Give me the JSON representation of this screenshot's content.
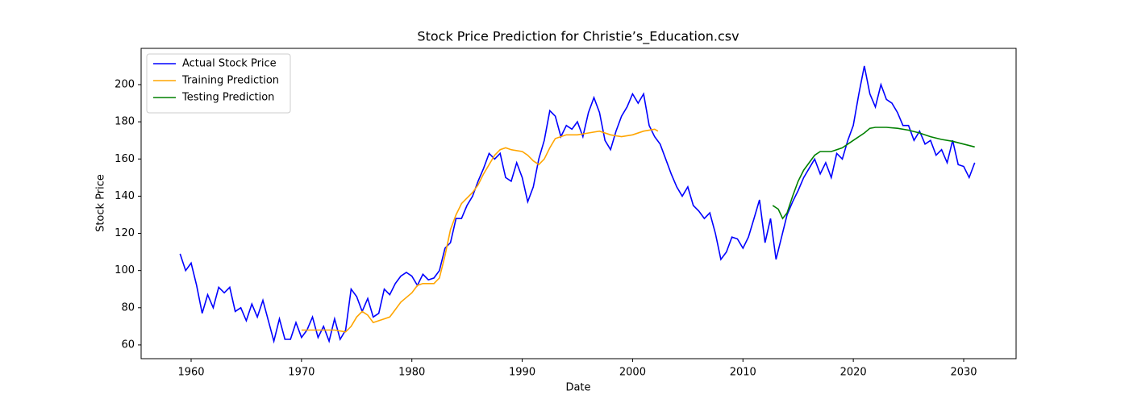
{
  "chart_data": {
    "type": "line",
    "title": "Stock Price Prediction for Christie’s_Education.csv",
    "x_label": "Date",
    "y_label": "Stock Price",
    "xlim": [
      1955.47,
      2034.75
    ],
    "ylim": [
      52.6,
      219.5
    ],
    "xticks": [
      1960,
      1970,
      1980,
      1990,
      2000,
      2010,
      2020,
      2030
    ],
    "yticks": [
      60,
      80,
      100,
      120,
      140,
      160,
      180,
      200
    ],
    "grid": false,
    "legend": "upper left",
    "series": [
      {
        "name": "Actual Stock Price",
        "color": "#0000ff",
        "x": [
          1959.0,
          1959.5,
          1960.0,
          1960.5,
          1961.0,
          1961.5,
          1962.0,
          1962.5,
          1963.0,
          1963.5,
          1964.0,
          1964.5,
          1965.0,
          1965.5,
          1966.0,
          1966.5,
          1967.0,
          1967.5,
          1968.0,
          1968.5,
          1969.0,
          1969.5,
          1970.0,
          1970.5,
          1971.0,
          1971.5,
          1972.0,
          1972.5,
          1973.0,
          1973.5,
          1974.0,
          1974.5,
          1975.0,
          1975.5,
          1976.0,
          1976.5,
          1977.0,
          1977.5,
          1978.0,
          1978.5,
          1979.0,
          1979.5,
          1980.0,
          1980.5,
          1981.0,
          1981.5,
          1982.0,
          1982.5,
          1983.0,
          1983.5,
          1984.0,
          1984.5,
          1985.0,
          1985.5,
          1986.0,
          1986.5,
          1987.0,
          1987.5,
          1988.0,
          1988.5,
          1989.0,
          1989.5,
          1990.0,
          1990.5,
          1991.0,
          1991.5,
          1992.0,
          1992.5,
          1993.0,
          1993.5,
          1994.0,
          1994.5,
          1995.0,
          1995.5,
          1996.0,
          1996.5,
          1997.0,
          1997.5,
          1998.0,
          1998.5,
          1999.0,
          1999.5,
          2000.0,
          2000.5,
          2001.0,
          2001.5,
          2002.0,
          2002.5,
          2003.0,
          2003.5,
          2004.0,
          2004.5,
          2005.0,
          2005.5,
          2006.0,
          2006.5,
          2007.0,
          2007.5,
          2008.0,
          2008.5,
          2009.0,
          2009.5,
          2010.0,
          2010.5,
          2011.0,
          2011.5,
          2012.0,
          2012.5,
          2013.0,
          2013.5,
          2014.0,
          2014.5,
          2015.0,
          2015.5,
          2016.0,
          2016.5,
          2017.0,
          2017.5,
          2018.0,
          2018.5,
          2019.0,
          2019.5,
          2020.0,
          2020.5,
          2021.0,
          2021.5,
          2022.0,
          2022.5,
          2023.0,
          2023.5,
          2024.0,
          2024.5,
          2025.0,
          2025.5,
          2026.0,
          2026.5,
          2027.0,
          2027.5,
          2028.0,
          2028.5,
          2029.0,
          2029.5,
          2030.0,
          2030.5,
          2031.0
        ],
        "values": [
          109,
          100,
          104,
          92,
          77,
          87,
          80,
          91,
          88,
          91,
          78,
          80,
          73,
          82,
          75,
          84,
          73,
          62,
          74,
          63,
          63,
          72,
          64,
          68,
          75,
          64,
          70,
          62,
          74,
          63,
          68,
          90,
          86,
          78,
          85,
          75,
          77,
          90,
          87,
          93,
          97,
          99,
          97,
          92,
          98,
          95,
          96,
          100,
          112,
          115,
          128,
          128,
          135,
          140,
          148,
          155,
          163,
          160,
          163,
          150,
          148,
          158,
          150,
          137,
          145,
          160,
          170,
          186,
          183,
          172,
          178,
          176,
          180,
          172,
          185,
          193,
          185,
          170,
          165,
          175,
          183,
          188,
          195,
          190,
          195,
          178,
          172,
          168,
          160,
          152,
          145,
          140,
          145,
          135,
          132,
          128,
          131,
          120,
          106,
          110,
          118,
          117,
          112,
          118,
          128,
          138,
          115,
          128,
          106,
          118,
          130,
          137,
          143,
          150,
          155,
          160,
          152,
          158,
          150,
          163,
          160,
          170,
          178,
          195,
          210,
          195,
          188,
          200,
          192,
          190,
          185,
          178,
          178,
          170,
          175,
          168,
          170,
          162,
          165,
          158,
          170,
          157,
          156,
          150,
          158
        ]
      },
      {
        "name": "Training Prediction",
        "color": "#ffa500",
        "x": [
          1970,
          1971,
          1972,
          1973,
          1974,
          1974.5,
          1975,
          1975.5,
          1976,
          1976.5,
          1977,
          1977.5,
          1978,
          1978.5,
          1979,
          1980,
          1980.5,
          1981,
          1982,
          1982.5,
          1983,
          1983.5,
          1984,
          1984.5,
          1985,
          1985.5,
          1986,
          1986.5,
          1987,
          1987.5,
          1988,
          1988.5,
          1989,
          1990,
          1990.5,
          1991,
          1991.5,
          1992,
          1992.5,
          1993,
          1994,
          1995,
          1996,
          1997,
          1998,
          1999,
          2000,
          2001,
          2002,
          2002.3
        ],
        "values": [
          68,
          68,
          68,
          68,
          67,
          70,
          75,
          78,
          76,
          72,
          73,
          74,
          75,
          79,
          83,
          88,
          92,
          93,
          93,
          96,
          108,
          122,
          130,
          136,
          139,
          142,
          146,
          152,
          157,
          162,
          165,
          166,
          165,
          164,
          162,
          159,
          157,
          160,
          166,
          171,
          173,
          173,
          174,
          175,
          173,
          172,
          173,
          175,
          176,
          175
        ]
      },
      {
        "name": "Testing Prediction",
        "color": "#008000",
        "x": [
          2012.7,
          2013.2,
          2013.6,
          2014,
          2014.5,
          2015,
          2015.5,
          2016,
          2016.5,
          2017,
          2018,
          2018.5,
          2019,
          2020,
          2021,
          2021.5,
          2022,
          2023,
          2024,
          2025,
          2026,
          2027,
          2028,
          2029,
          2030,
          2031
        ],
        "values": [
          135,
          133,
          128,
          131,
          140,
          148,
          154,
          158,
          162,
          164,
          164,
          165,
          166,
          170,
          174,
          176.5,
          177,
          177,
          176.5,
          175.5,
          174,
          172,
          170.5,
          169.5,
          168,
          166.5
        ]
      }
    ]
  }
}
